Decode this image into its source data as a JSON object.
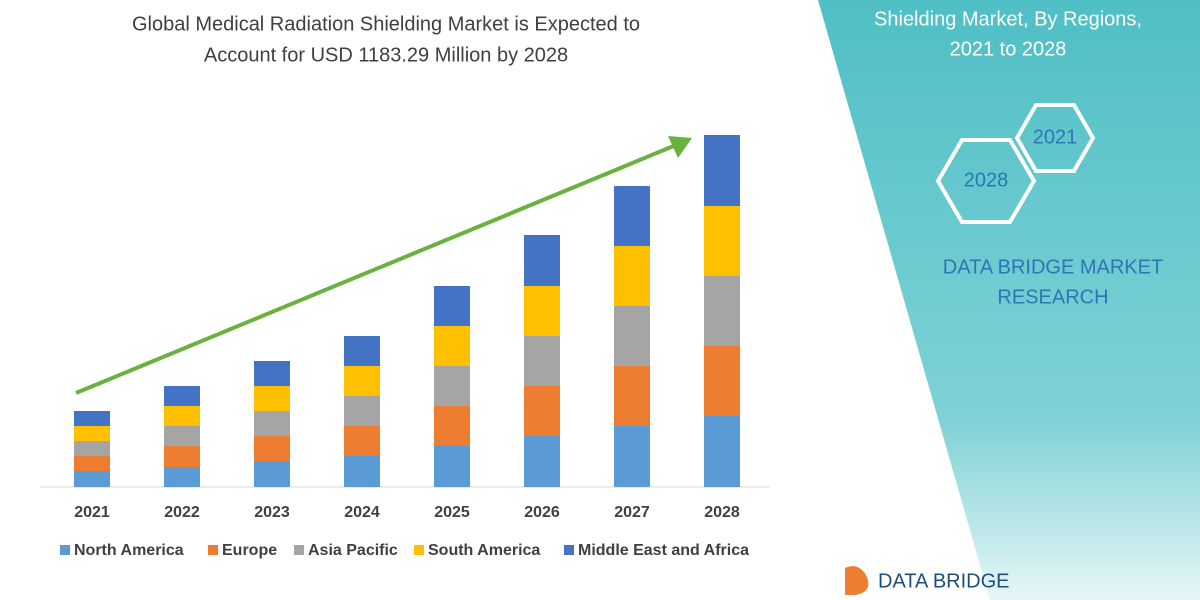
{
  "chart_data": {
    "type": "stacked_bar",
    "title": [
      "Global Medical Radiation Shielding Market is Expected to",
      "Account for USD 1183.29 Million by 2028"
    ],
    "categories": [
      "2021",
      "2022",
      "2023",
      "2024",
      "2025",
      "2026",
      "2027",
      "2028"
    ],
    "series": [
      {
        "name": "North America",
        "color": "#5b9bd5",
        "values": [
          16,
          20,
          26,
          31,
          41,
          51,
          61,
          71
        ]
      },
      {
        "name": "Europe",
        "color": "#ed7d31",
        "values": [
          15,
          21,
          25,
          30,
          40,
          50,
          60,
          70
        ]
      },
      {
        "name": "Asia Pacific",
        "color": "#a5a5a5",
        "values": [
          15,
          20,
          25,
          30,
          40,
          50,
          60,
          70
        ]
      },
      {
        "name": "South America",
        "color": "#ffc000",
        "values": [
          15,
          20,
          25,
          30,
          40,
          50,
          60,
          70
        ]
      },
      {
        "name": "Middle East and Africa",
        "color": "#4472c4",
        "values": [
          15,
          20,
          25,
          30,
          40,
          51,
          60,
          71
        ]
      }
    ],
    "legend": "bottom"
  },
  "panel": {
    "heading": [
      "Shielding Market, By Regions,",
      "2021 to 2028"
    ],
    "hex": [
      "2021",
      "2028"
    ],
    "brand": [
      "DATA BRIDGE MARKET",
      "RESEARCH"
    ],
    "logo": "DATA BRIDGE"
  }
}
